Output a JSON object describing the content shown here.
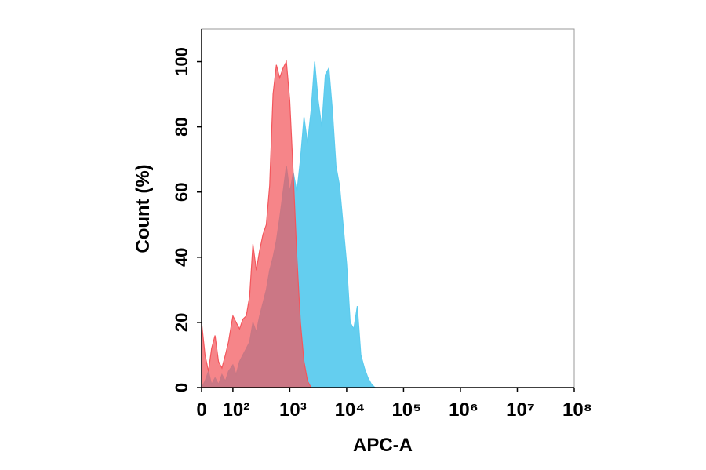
{
  "chart_data": {
    "type": "area",
    "x_label": "APC-A",
    "y_label": "Count  (%)",
    "xscale": "biexponential",
    "xlim": [
      0,
      100000000
    ],
    "xticks": [
      0,
      {
        "value": 100,
        "label": "10²"
      },
      {
        "value": 1000,
        "label": "10³"
      },
      {
        "value": 10000,
        "label": "10⁴"
      },
      {
        "value": 100000,
        "label": "10⁵"
      },
      {
        "value": 1000000,
        "label": "10⁶"
      },
      {
        "value": 10000000,
        "label": "10⁷"
      },
      {
        "value": 100000000,
        "label": "10⁸"
      }
    ],
    "ylim": [
      0,
      110
    ],
    "yticks": [
      0,
      20,
      40,
      60,
      80,
      100
    ],
    "series": [
      {
        "color": "#5ccbee",
        "x": [
          0,
          11,
          22,
          32,
          43,
          54,
          65,
          76,
          86,
          100,
          114,
          131,
          150,
          172,
          197,
          225,
          258,
          295,
          338,
          387,
          443,
          508,
          581,
          665,
          762,
          872,
          1000,
          1155,
          1334,
          1540,
          1778,
          2054,
          2371,
          2738,
          3162,
          3652,
          4217,
          4870,
          5623,
          6494,
          7499,
          8660,
          10000,
          11548,
          13335,
          15399,
          17783,
          20535,
          23714,
          27384,
          31623
        ],
        "values": [
          0,
          2,
          5,
          1,
          3,
          1,
          4,
          2,
          5,
          7,
          4,
          8,
          10,
          12,
          14,
          20,
          17,
          22,
          26,
          30,
          36,
          40,
          45,
          52,
          60,
          68,
          60,
          66,
          60,
          70,
          83,
          75,
          85,
          100,
          88,
          80,
          96,
          98,
          85,
          68,
          62,
          50,
          38,
          20,
          18,
          25,
          10,
          6,
          3,
          1,
          0
        ]
      },
      {
        "color": "#f3565c",
        "x": [
          0,
          11,
          22,
          32,
          43,
          54,
          65,
          76,
          86,
          100,
          114,
          131,
          150,
          172,
          197,
          225,
          258,
          295,
          338,
          387,
          443,
          508,
          581,
          665,
          762,
          872,
          1000,
          1155,
          1334,
          1540,
          1778,
          2054,
          2371
        ],
        "values": [
          20,
          10,
          5,
          12,
          16,
          8,
          6,
          10,
          14,
          22,
          20,
          18,
          21,
          22,
          28,
          44,
          36,
          42,
          47,
          50,
          62,
          90,
          99,
          95,
          98,
          100,
          88,
          65,
          40,
          20,
          8,
          2,
          0
        ]
      }
    ]
  }
}
